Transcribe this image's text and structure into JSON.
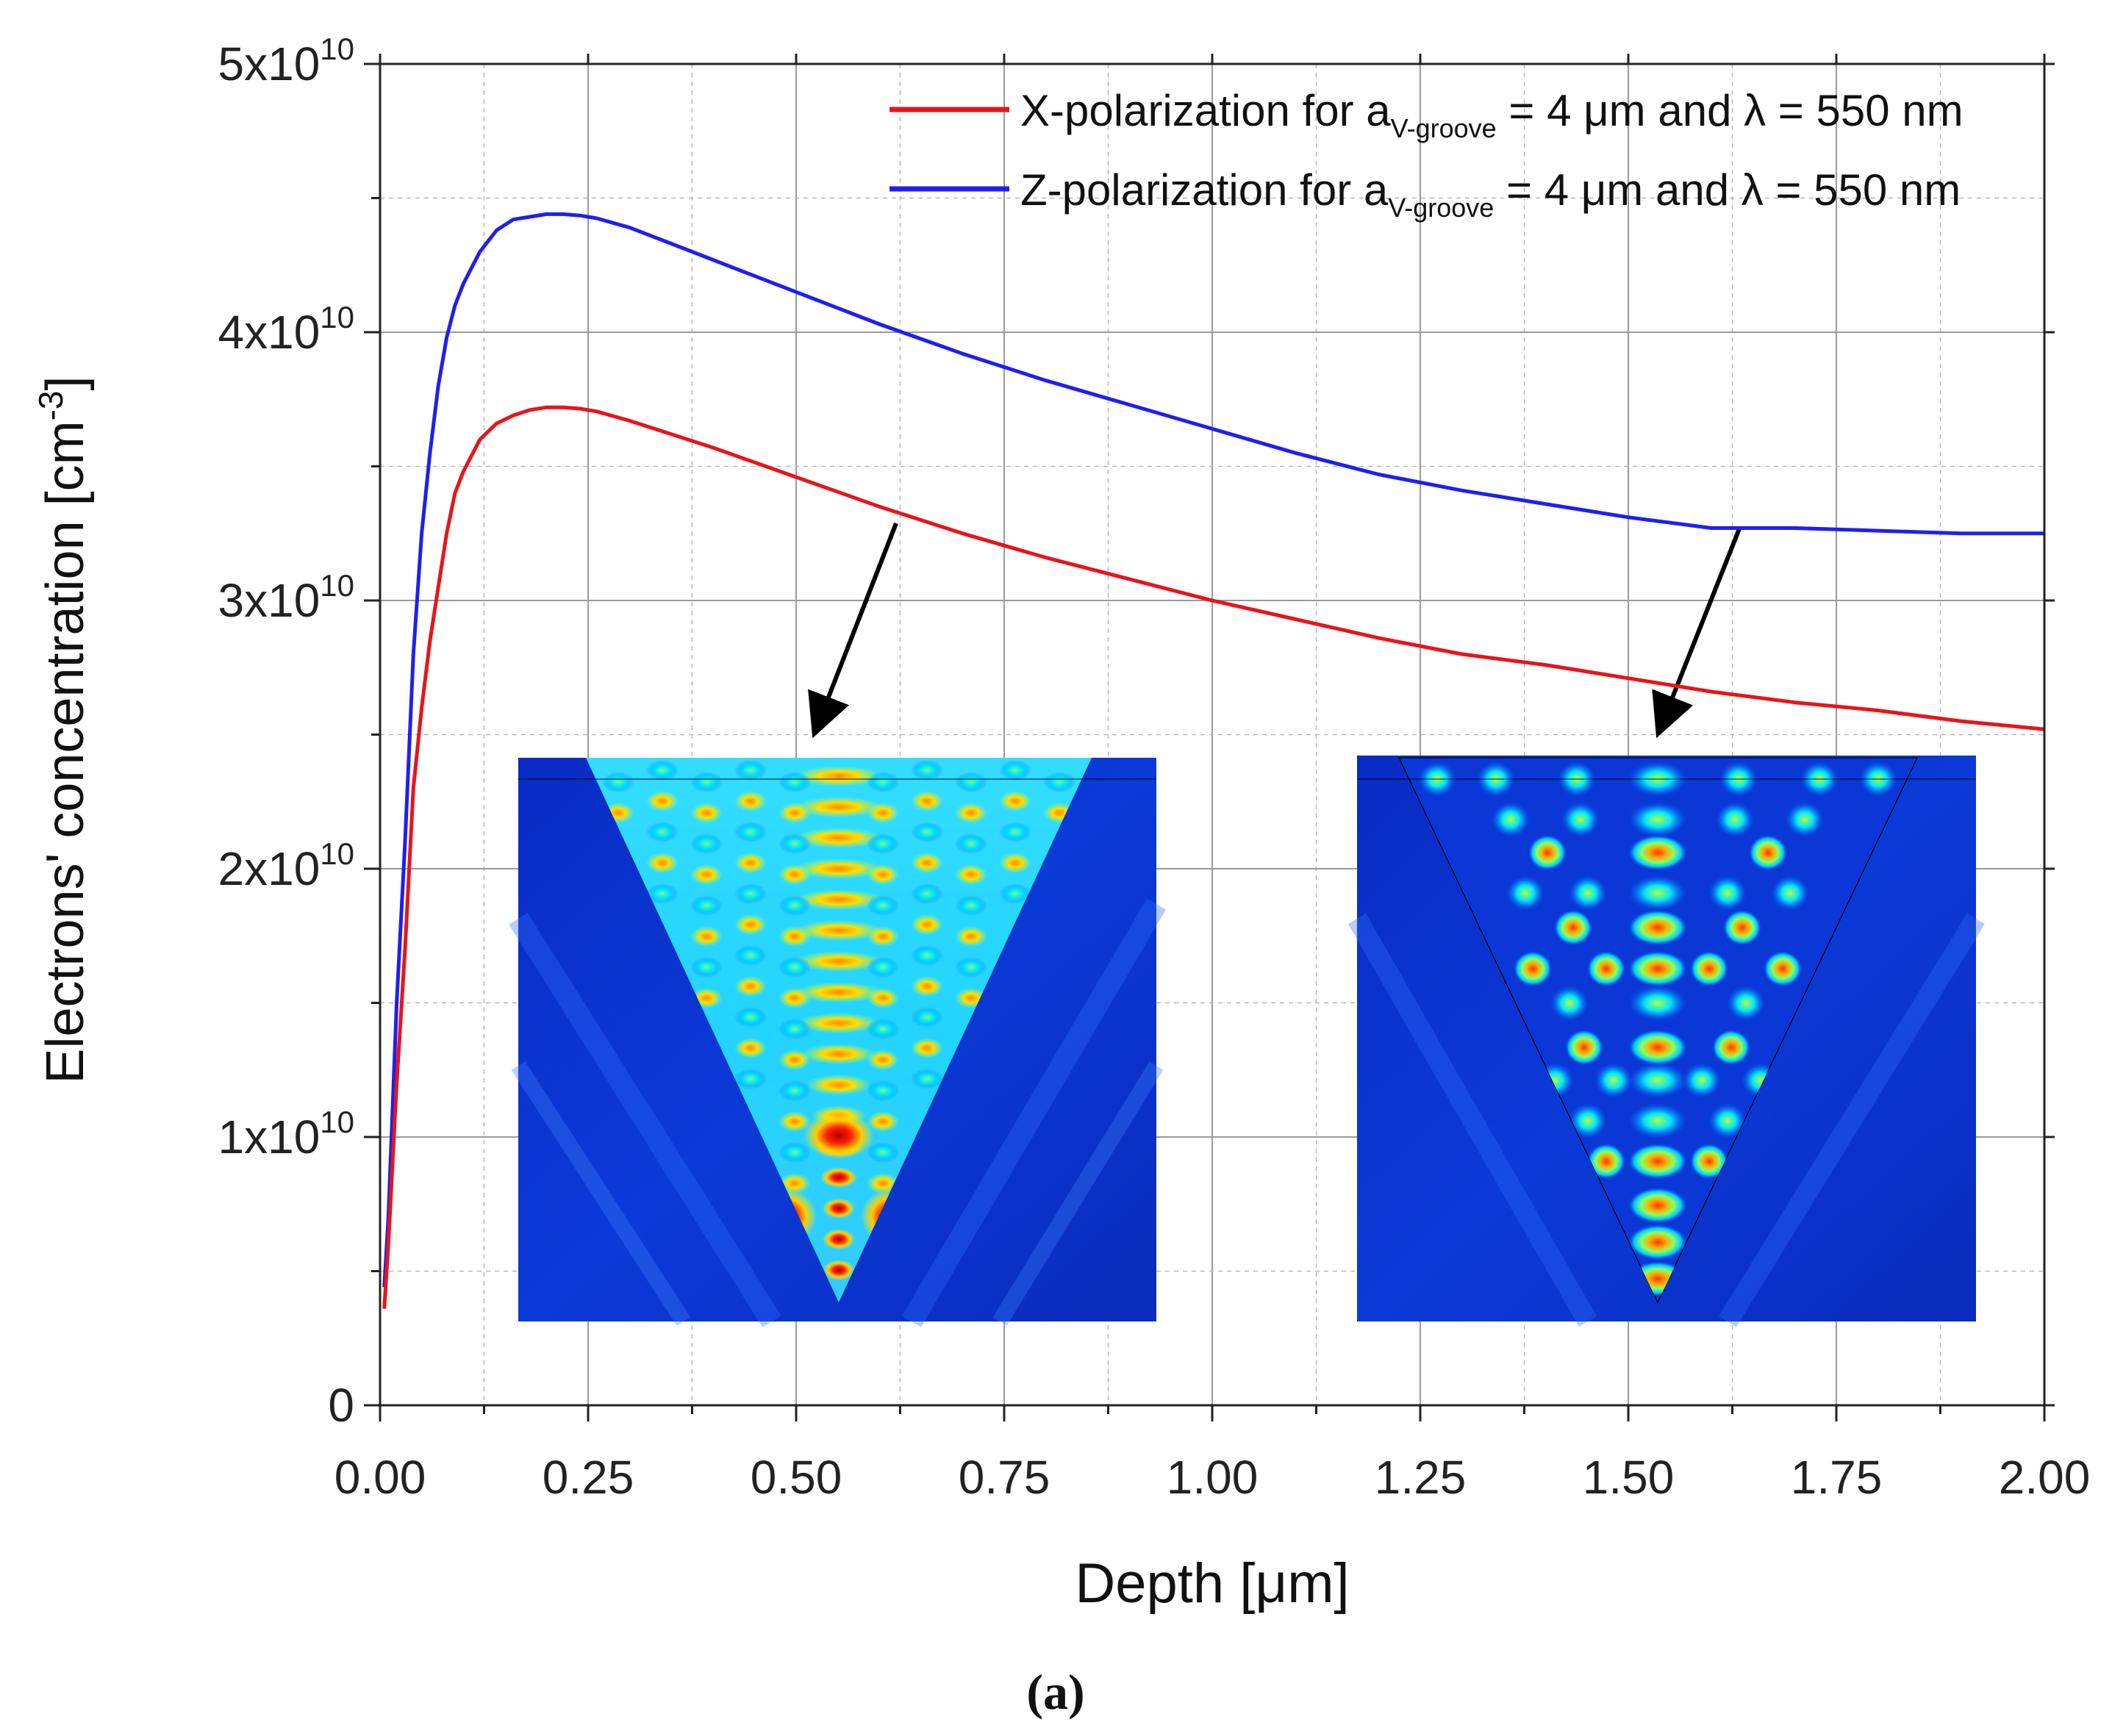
{
  "chart_data": {
    "type": "line",
    "xlabel": "Depth [μm]",
    "ylabel_main": "Electrons' concentration [cm",
    "ylabel_sup": "-3",
    "ylabel_end": "]",
    "xlim": [
      0,
      2
    ],
    "ylim": [
      0,
      50000000000
    ],
    "grid": true,
    "legend_position": "top-right",
    "x_ticks": [
      0,
      0.25,
      0.5,
      0.75,
      1.0,
      1.25,
      1.5,
      1.75,
      2.0
    ],
    "x_tick_labels": [
      "0.00",
      "0.25",
      "0.50",
      "0.75",
      "1.00",
      "1.25",
      "1.50",
      "1.75",
      "2.00"
    ],
    "y_ticks": [
      0,
      10000000000,
      20000000000,
      30000000000,
      40000000000,
      50000000000
    ],
    "y_tick_labels": [
      {
        "base": "0",
        "exp": ""
      },
      {
        "base": "1x10",
        "exp": "10"
      },
      {
        "base": "2x10",
        "exp": "10"
      },
      {
        "base": "3x10",
        "exp": "10"
      },
      {
        "base": "4x10",
        "exp": "10"
      },
      {
        "base": "5x10",
        "exp": "10"
      }
    ],
    "x": [
      0.005,
      0.01,
      0.02,
      0.03,
      0.04,
      0.05,
      0.06,
      0.07,
      0.08,
      0.09,
      0.1,
      0.12,
      0.14,
      0.16,
      0.18,
      0.2,
      0.22,
      0.24,
      0.26,
      0.3,
      0.35,
      0.4,
      0.5,
      0.6,
      0.7,
      0.8,
      0.9,
      1.0,
      1.1,
      1.2,
      1.3,
      1.4,
      1.5,
      1.6,
      1.7,
      1.8,
      1.9,
      2.0
    ],
    "series": [
      {
        "name": "X-polarization",
        "color": "#e8141b",
        "values": [
          3600000000.0,
          6000000000.0,
          12000000000.0,
          17000000000.0,
          23000000000.0,
          26000000000.0,
          28500000000.0,
          30500000000.0,
          32500000000.0,
          34000000000.0,
          34800000000.0,
          36000000000.0,
          36600000000.0,
          36900000000.0,
          37100000000.0,
          37200000000.0,
          37200000000.0,
          37150000000.0,
          37050000000.0,
          36700000000.0,
          36200000000.0,
          35700000000.0,
          34600000000.0,
          33500000000.0,
          32500000000.0,
          31600000000.0,
          30800000000.0,
          30000000000.0,
          29300000000.0,
          28600000000.0,
          28000000000.0,
          27600000000.0,
          27100000000.0,
          26600000000.0,
          26200000000.0,
          25900000000.0,
          25500000000.0,
          25200000000.0
        ],
        "legend": {
          "prefix": "X-polarization for a",
          "sub": "V-groove",
          "suffix": " = 4 μm and λ = 550 nm"
        }
      },
      {
        "name": "Z-polarization",
        "color": "#1f1fef",
        "values": [
          4400000000.0,
          7000000000.0,
          15000000000.0,
          21000000000.0,
          28000000000.0,
          32500000000.0,
          35500000000.0,
          38000000000.0,
          39800000000.0,
          41000000000.0,
          41800000000.0,
          43000000000.0,
          43800000000.0,
          44200000000.0,
          44300000000.0,
          44400000000.0,
          44400000000.0,
          44350000000.0,
          44250000000.0,
          43900000000.0,
          43300000000.0,
          42700000000.0,
          41500000000.0,
          40300000000.0,
          39200000000.0,
          38200000000.0,
          37300000000.0,
          36400000000.0,
          35500000000.0,
          34700000000.0,
          34100000000.0,
          33600000000.0,
          33100000000.0,
          32700000000.0,
          32700000000.0,
          32600000000.0,
          32500000000.0,
          32500000000.0
        ],
        "legend": {
          "prefix": "Z-polarization for a",
          "sub": "V-groove",
          "suffix": " = 4 μm and λ = 550 nm"
        }
      }
    ],
    "insets": [
      {
        "name": "x-polarization-field-map",
        "colormap": "jet",
        "arrow_target_depth": 0.52
      },
      {
        "name": "z-polarization-field-map",
        "colormap": "jet",
        "arrow_target_depth": 1.53
      }
    ]
  },
  "caption": "(a)"
}
